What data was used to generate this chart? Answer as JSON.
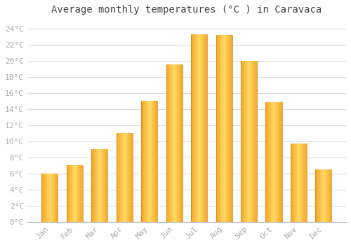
{
  "title": "Average monthly temperatures (°C ) in Caravaca",
  "months": [
    "Jan",
    "Feb",
    "Mar",
    "Apr",
    "May",
    "Jun",
    "Jul",
    "Aug",
    "Sep",
    "Oct",
    "Nov",
    "Dec"
  ],
  "values": [
    6.0,
    7.0,
    9.0,
    11.0,
    15.0,
    19.5,
    23.3,
    23.2,
    20.0,
    14.8,
    9.7,
    6.5
  ],
  "bar_color_center": "#FFD966",
  "bar_color_edge": "#F5A623",
  "background_color": "#FFFFFF",
  "grid_color": "#DDDDDD",
  "ylim": [
    0,
    25
  ],
  "yticks": [
    0,
    2,
    4,
    6,
    8,
    10,
    12,
    14,
    16,
    18,
    20,
    22,
    24
  ],
  "title_fontsize": 10,
  "tick_fontsize": 8,
  "tick_color": "#AAAAAA",
  "font_family": "monospace",
  "figsize": [
    5.0,
    3.5
  ],
  "dpi": 100
}
